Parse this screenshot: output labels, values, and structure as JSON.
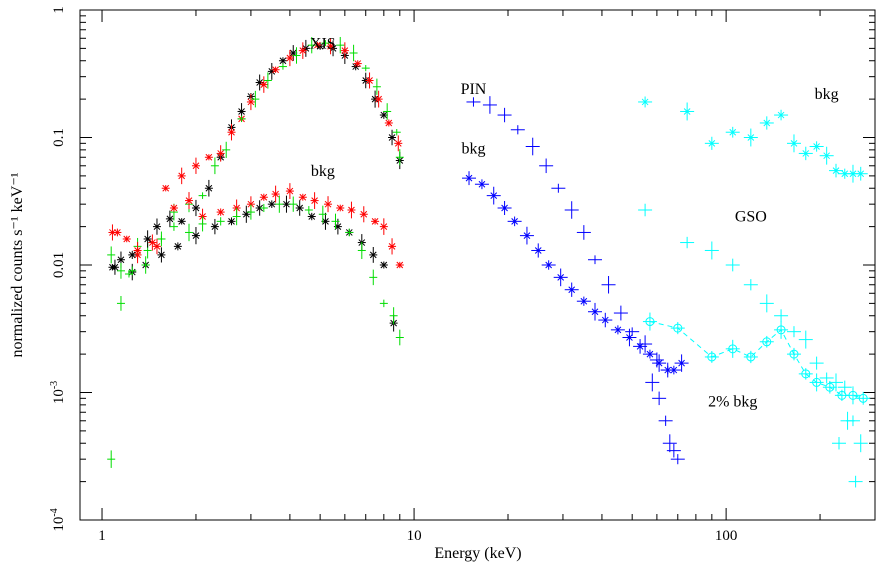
{
  "chart_data": {
    "type": "scatter",
    "title": "",
    "xlabel": "Energy (keV)",
    "ylabel": "normalized counts s⁻¹ keV⁻¹",
    "xscale": "log",
    "yscale": "log",
    "xlim": [
      0.85,
      300
    ],
    "ylim": [
      0.0001,
      1
    ],
    "x_ticks": [
      {
        "value": 1,
        "label": "1"
      },
      {
        "value": 10,
        "label": "10"
      },
      {
        "value": 100,
        "label": "100"
      }
    ],
    "y_ticks": [
      {
        "value": 1,
        "label": "1"
      },
      {
        "value": 0.1,
        "label": "0.1"
      },
      {
        "value": 0.01,
        "label": "0.01"
      },
      {
        "value": 0.001,
        "label": "10",
        "exp": "-3"
      },
      {
        "value": 0.0001,
        "label": "10",
        "exp": "-4"
      }
    ],
    "grid": false,
    "annotations": [
      {
        "text": "XIS",
        "x": 5.1,
        "y": 0.5
      },
      {
        "text": "bkg",
        "x": 5.1,
        "y": 0.05
      },
      {
        "text": "PIN",
        "x": 15.5,
        "y": 0.22
      },
      {
        "text": "bkg",
        "x": 15.5,
        "y": 0.075
      },
      {
        "text": "bkg",
        "x": 210,
        "y": 0.2
      },
      {
        "text": "GSO",
        "x": 120,
        "y": 0.022
      },
      {
        "text": "2% bkg",
        "x": 105,
        "y": 0.00078
      }
    ],
    "series": [
      {
        "color": "#000000",
        "marker": "star",
        "x": [
          1.08,
          1.15,
          1.25,
          1.38,
          1.5,
          1.65,
          1.8,
          2.0,
          2.2,
          2.4,
          2.6,
          2.8,
          3.0,
          3.2,
          3.5,
          3.8,
          4.1,
          4.5,
          5.0,
          5.5,
          6.0,
          6.5,
          7.0,
          7.5,
          8.0,
          8.5,
          9.0
        ],
        "y": [
          0.0096,
          0.011,
          0.0088,
          0.01,
          0.02,
          0.023,
          0.022,
          0.028,
          0.04,
          0.07,
          0.12,
          0.16,
          0.21,
          0.27,
          0.33,
          0.4,
          0.46,
          0.5,
          0.52,
          0.5,
          0.44,
          0.36,
          0.28,
          0.2,
          0.15,
          0.1,
          0.066
        ]
      },
      {
        "color": "#ff0000",
        "marker": "star",
        "x": [
          1.08,
          1.2,
          1.3,
          1.45,
          1.6,
          1.8,
          2.0,
          2.2,
          2.4,
          2.6,
          2.8,
          3.0,
          3.3,
          3.6,
          4.0,
          4.4,
          4.9,
          5.4,
          6.0,
          6.6,
          7.2,
          7.7,
          8.3,
          8.9
        ],
        "y": [
          0.018,
          0.016,
          0.012,
          0.015,
          0.04,
          0.05,
          0.06,
          0.07,
          0.075,
          0.11,
          0.14,
          0.19,
          0.26,
          0.34,
          0.42,
          0.48,
          0.53,
          0.52,
          0.48,
          0.38,
          0.28,
          0.2,
          0.13,
          0.09
        ]
      },
      {
        "color": "#00dd00",
        "marker": "plus",
        "x": [
          1.07,
          1.15,
          1.22,
          1.3,
          1.4,
          1.55,
          1.7,
          1.9,
          2.1,
          2.3,
          2.5,
          2.8,
          3.1,
          3.4,
          3.8,
          4.2,
          4.7,
          5.2,
          5.8,
          6.4,
          7.0,
          7.6,
          8.2,
          8.8,
          9.0
        ],
        "y": [
          0.012,
          0.009,
          0.0085,
          0.014,
          0.013,
          0.016,
          0.026,
          0.03,
          0.035,
          0.06,
          0.08,
          0.14,
          0.2,
          0.28,
          0.36,
          0.44,
          0.53,
          0.55,
          0.53,
          0.46,
          0.35,
          0.25,
          0.16,
          0.11,
          0.07
        ]
      },
      {
        "color": "#ff0000",
        "marker": "star",
        "x": [
          1.12,
          1.3,
          1.5,
          1.7,
          1.9,
          2.1,
          2.4,
          2.7,
          3.0,
          3.3,
          3.6,
          4.0,
          4.4,
          4.8,
          5.3,
          5.8,
          6.3,
          6.9,
          7.5,
          8.0,
          8.5,
          9.0
        ],
        "y": [
          0.018,
          0.013,
          0.014,
          0.028,
          0.032,
          0.024,
          0.026,
          0.028,
          0.03,
          0.034,
          0.036,
          0.038,
          0.034,
          0.032,
          0.03,
          0.028,
          0.027,
          0.025,
          0.022,
          0.02,
          0.014,
          0.01
        ]
      },
      {
        "color": "#000000",
        "marker": "star",
        "x": [
          1.1,
          1.25,
          1.4,
          1.55,
          1.75,
          2.0,
          2.3,
          2.6,
          2.9,
          3.2,
          3.5,
          3.9,
          4.3,
          4.7,
          5.2,
          5.7,
          6.2,
          6.8,
          7.4,
          8.0,
          8.6
        ],
        "y": [
          0.0096,
          0.012,
          0.016,
          0.012,
          0.014,
          0.017,
          0.02,
          0.022,
          0.025,
          0.028,
          0.03,
          0.03,
          0.028,
          0.024,
          0.022,
          0.02,
          0.018,
          0.015,
          0.012,
          0.01,
          0.0035
        ]
      },
      {
        "color": "#00dd00",
        "marker": "plus",
        "x": [
          1.07,
          1.15,
          1.25,
          1.38,
          1.55,
          1.7,
          1.9,
          2.1,
          2.4,
          2.7,
          3.0,
          3.3,
          3.7,
          4.1,
          4.6,
          5.1,
          5.6,
          6.2,
          6.8,
          7.4,
          8.0,
          8.6,
          9.0
        ],
        "y": [
          0.0003,
          0.005,
          0.009,
          0.01,
          0.016,
          0.02,
          0.018,
          0.021,
          0.022,
          0.024,
          0.026,
          0.028,
          0.03,
          0.03,
          0.027,
          0.025,
          0.022,
          0.018,
          0.013,
          0.008,
          0.005,
          0.004,
          0.0027
        ]
      },
      {
        "color": "#0000ff",
        "marker": "plus",
        "x": [
          15.5,
          17.5,
          19.5,
          21.5,
          24,
          26.5,
          29,
          32,
          35,
          38,
          42,
          46,
          50,
          55,
          60,
          65
        ],
        "y": [
          0.19,
          0.18,
          0.15,
          0.115,
          0.085,
          0.06,
          0.04,
          0.027,
          0.018,
          0.011,
          0.007,
          0.0042,
          0.003,
          0.0024,
          0.0018,
          0.0015
        ]
      },
      {
        "color": "#0000ff",
        "marker": "star",
        "x": [
          15,
          16.5,
          18,
          19.5,
          21,
          23,
          25,
          27,
          29.5,
          32,
          35,
          38,
          41,
          45,
          49,
          53,
          57,
          61,
          65,
          68,
          72
        ],
        "y": [
          0.048,
          0.043,
          0.035,
          0.028,
          0.022,
          0.017,
          0.013,
          0.01,
          0.008,
          0.0064,
          0.0052,
          0.0043,
          0.0037,
          0.0031,
          0.0027,
          0.0023,
          0.002,
          0.0017,
          0.0015,
          0.0015,
          0.0017
        ]
      },
      {
        "color": "#0000ff",
        "marker": "plus",
        "x": [
          58,
          61,
          64,
          66,
          68,
          70
        ],
        "y": [
          0.0012,
          0.0009,
          0.0006,
          0.0004,
          0.00035,
          0.0003
        ]
      },
      {
        "color": "#00ffff",
        "marker": "star",
        "x": [
          55,
          75,
          90,
          105,
          120,
          135,
          150,
          165,
          180,
          195,
          210,
          225,
          240,
          255,
          270
        ],
        "y": [
          0.19,
          0.16,
          0.09,
          0.11,
          0.1,
          0.13,
          0.15,
          0.09,
          0.075,
          0.085,
          0.072,
          0.055,
          0.052,
          0.052,
          0.052
        ]
      },
      {
        "color": "#00ffff",
        "marker": "plus",
        "x": [
          55,
          75,
          90,
          105,
          120,
          135,
          150,
          165,
          180,
          195,
          210,
          225,
          240,
          255,
          270
        ],
        "y": [
          0.027,
          0.015,
          0.013,
          0.01,
          0.007,
          0.005,
          0.004,
          0.003,
          0.0026,
          0.0017,
          0.0013,
          0.0012,
          0.0011,
          0.0006,
          0.0004
        ]
      },
      {
        "color": "#00ffff",
        "marker": "circle",
        "x": [
          57,
          70,
          90,
          105,
          120,
          135,
          150,
          165,
          180,
          195,
          215,
          235,
          255,
          275
        ],
        "y": [
          0.0036,
          0.0032,
          0.0019,
          0.0022,
          0.0019,
          0.0025,
          0.0031,
          0.002,
          0.0014,
          0.0012,
          0.0011,
          0.00095,
          0.00095,
          0.0009
        ]
      },
      {
        "color": "#00ffff",
        "marker": "plus",
        "x": [
          230,
          245,
          260
        ],
        "y": [
          0.0004,
          0.0006,
          0.0002
        ]
      }
    ]
  }
}
